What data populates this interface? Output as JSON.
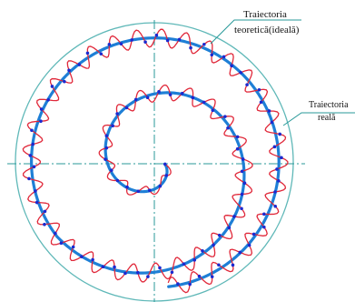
{
  "labels": {
    "ideal_line1": "Traiectoria",
    "ideal_line2": "teoretică(ideală)",
    "real_line1": "Traiectoria",
    "real_line2": "reală"
  },
  "colors": {
    "circle": "#5fb8b8",
    "axis": "#2a9a9a",
    "ideal": "#1e7fd6",
    "real": "#e0283a",
    "dot": "#1a2ad0",
    "leader": "#2a9a9a"
  }
}
